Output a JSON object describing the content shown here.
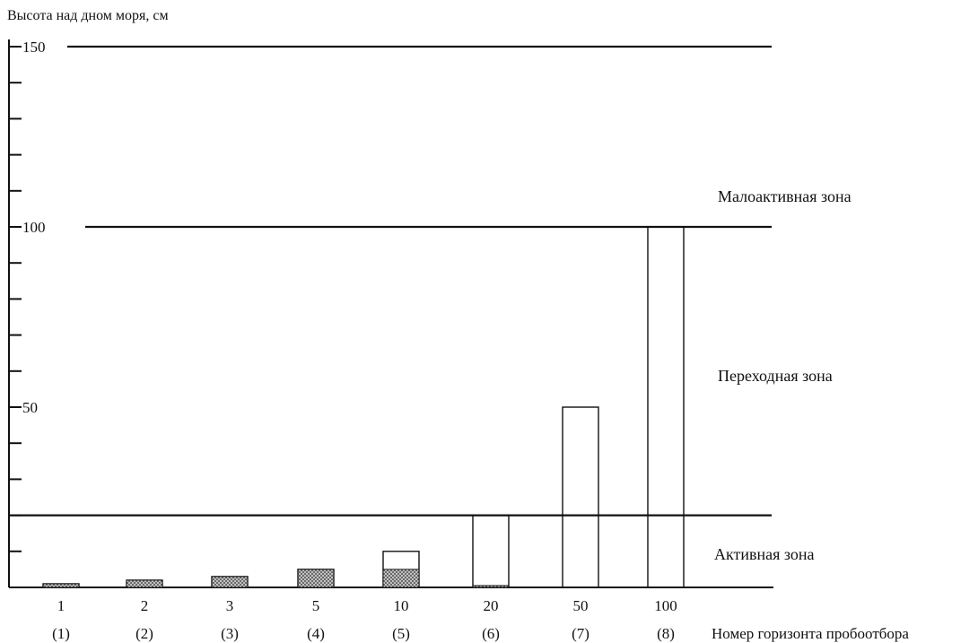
{
  "chart_data": {
    "type": "bar",
    "ylabel": "Высота над дном моря, см",
    "xlabel": "Номер горизонта пробоотбора",
    "ylim": [
      0,
      150
    ],
    "y_tick_labels": [
      50,
      100,
      150
    ],
    "y_minor_step": 10,
    "categories": [
      "1",
      "2",
      "3",
      "5",
      "10",
      "20",
      "50",
      "100"
    ],
    "category_numbers": [
      "(1)",
      "(2)",
      "(3)",
      "(4)",
      "(5)",
      "(6)",
      "(7)",
      "(8)"
    ],
    "hatched_values": [
      1,
      2,
      3,
      5,
      5,
      0.5,
      0,
      0
    ],
    "outline_values": [
      1,
      2,
      3,
      5,
      10,
      20,
      50,
      100
    ],
    "zone_boundaries": [
      20,
      100,
      150
    ],
    "zones": [
      "Активная зона",
      "Переходная зона",
      "Малоактивная зона"
    ],
    "colors": {
      "line": "#111111",
      "hatch": "#555555"
    }
  }
}
